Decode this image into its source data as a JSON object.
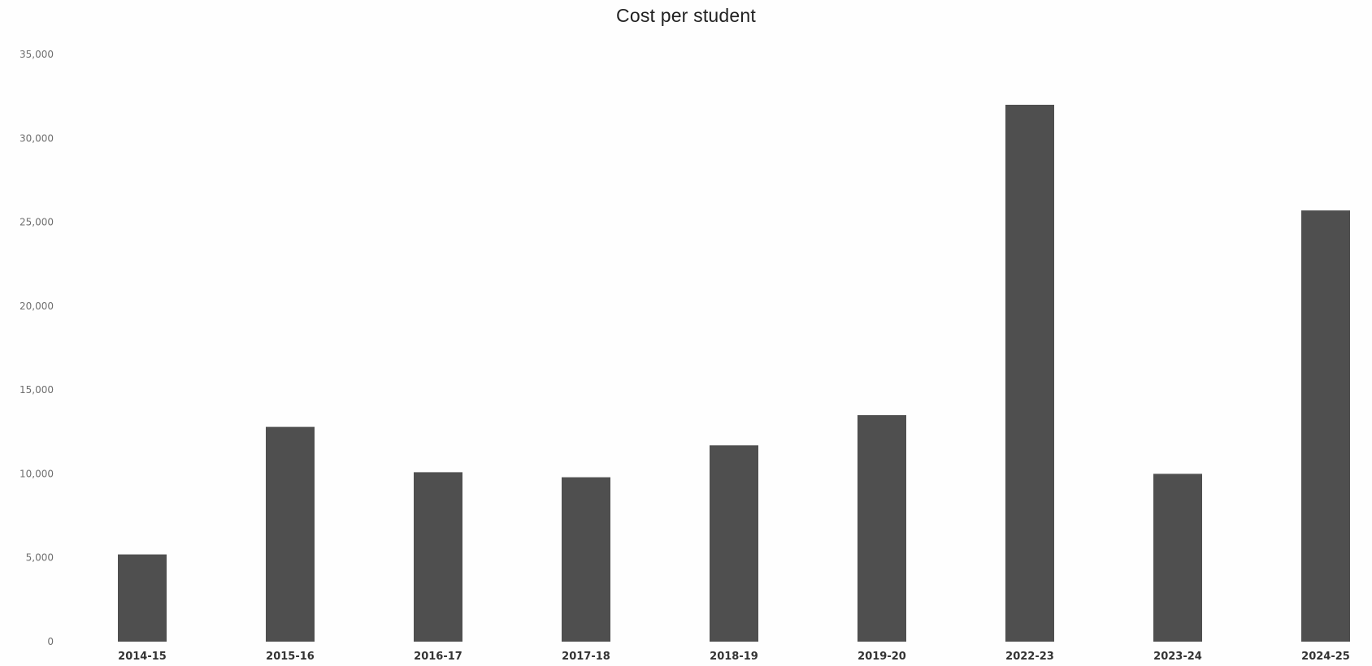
{
  "chart_data": {
    "type": "bar",
    "title": "Cost per student",
    "xlabel": "",
    "ylabel": "",
    "categories": [
      "2014-15",
      "2015-16",
      "2016-17",
      "2017-18",
      "2018-19",
      "2019-20",
      "2022-23",
      "2023-24",
      "2024-25"
    ],
    "values": [
      5200,
      12800,
      10100,
      9800,
      11700,
      13500,
      32000,
      10000,
      25700
    ],
    "ylim": [
      0,
      35000
    ],
    "yticks": [
      0,
      5000,
      10000,
      15000,
      20000,
      25000,
      30000,
      35000
    ],
    "ytick_labels": [
      "0",
      "5,000",
      "10,000",
      "15,000",
      "20,000",
      "25,000",
      "30,000",
      "35,000"
    ],
    "grid": false,
    "legend": "none",
    "bar_color": "#4f4f4f"
  }
}
